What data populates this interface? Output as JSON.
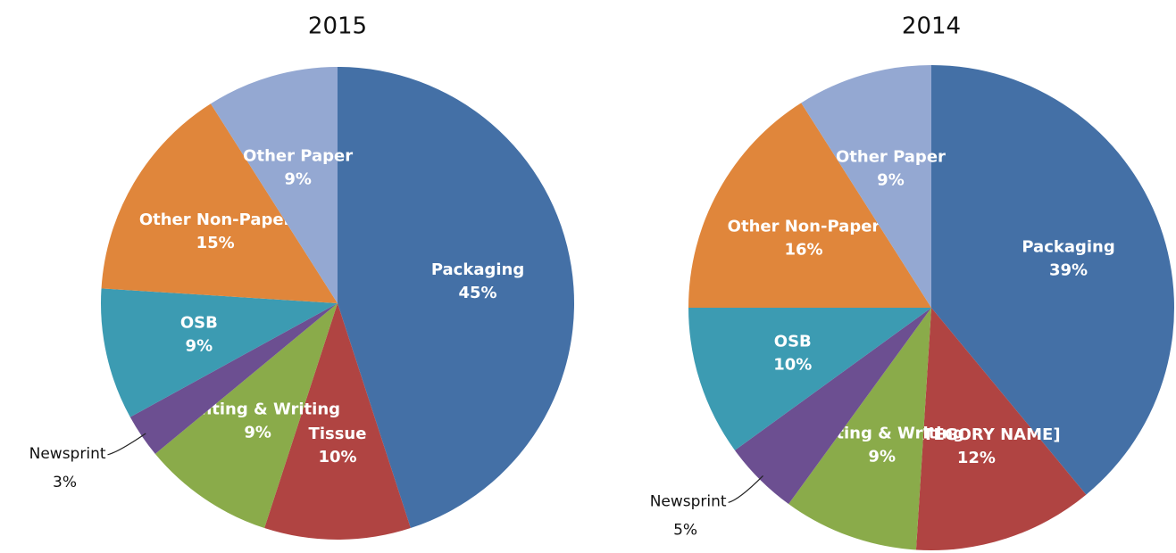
{
  "chart_data": [
    {
      "type": "pie",
      "title": "2015",
      "categories": [
        "Packaging",
        "Tissue",
        "Printing & Writing",
        "Newsprint",
        "OSB",
        "Other Non-Paper",
        "Other Paper"
      ],
      "values": [
        45,
        10,
        9,
        3,
        9,
        15,
        9
      ],
      "value_labels": [
        "45%",
        "10%",
        "9%",
        "3%",
        "9%",
        "15%",
        "9%"
      ],
      "colors": [
        "#4470a6",
        "#b04442",
        "#8aab4a",
        "#6c4f91",
        "#3c9bb2",
        "#e0863b",
        "#94a8d2"
      ]
    },
    {
      "type": "pie",
      "title": "2014",
      "categories": [
        "Packaging",
        "[CATEGORY NAME]",
        "Printing & Writing",
        "Newsprint",
        "OSB",
        "Other Non-Paper",
        "Other Paper"
      ],
      "values": [
        39,
        12,
        9,
        5,
        10,
        16,
        9
      ],
      "value_labels": [
        "39%",
        "12%",
        "9%",
        "5%",
        "10%",
        "16%",
        "9%"
      ],
      "colors": [
        "#4470a6",
        "#b04442",
        "#8aab4a",
        "#6c4f91",
        "#3c9bb2",
        "#e0863b",
        "#94a8d2"
      ]
    }
  ]
}
